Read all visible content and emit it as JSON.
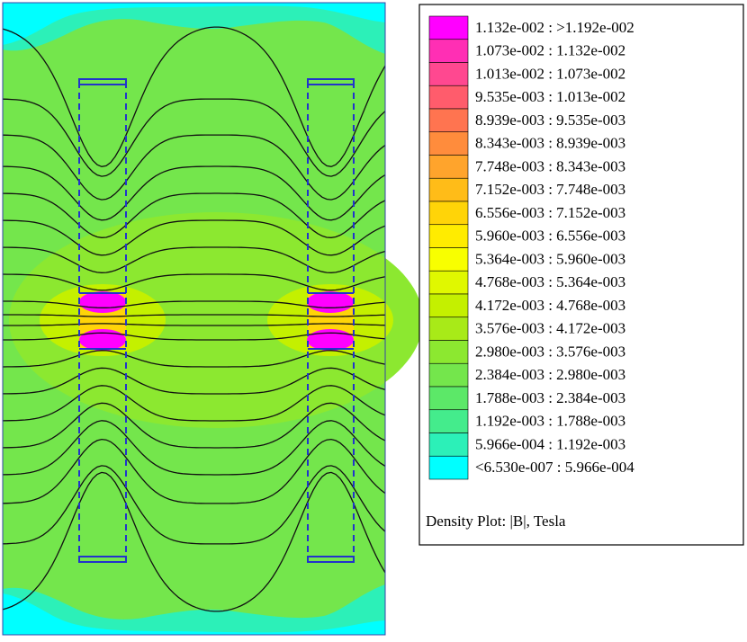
{
  "legend": {
    "items": [
      {
        "label": "1.132e-002 : >1.192e-002",
        "color": "#ff00ff"
      },
      {
        "label": "1.073e-002 : 1.132e-002",
        "color": "#ff2fb4"
      },
      {
        "label": "1.013e-002 : 1.073e-002",
        "color": "#ff4890"
      },
      {
        "label": "9.535e-003 : 1.013e-002",
        "color": "#ff5c6c"
      },
      {
        "label": "8.939e-003 : 9.535e-003",
        "color": "#ff7450"
      },
      {
        "label": "8.343e-003 : 8.939e-003",
        "color": "#ff8c3c"
      },
      {
        "label": "7.748e-003 : 8.343e-003",
        "color": "#ffa42c"
      },
      {
        "label": "7.152e-003 : 7.748e-003",
        "color": "#ffbc18"
      },
      {
        "label": "6.556e-003 : 7.152e-003",
        "color": "#ffd408"
      },
      {
        "label": "5.960e-003 : 6.556e-003",
        "color": "#ffec00"
      },
      {
        "label": "5.364e-003 : 5.960e-003",
        "color": "#f8ff00"
      },
      {
        "label": "4.768e-003 : 5.364e-003",
        "color": "#e0f800"
      },
      {
        "label": "4.172e-003 : 4.768e-003",
        "color": "#c4f000"
      },
      {
        "label": "3.576e-003 : 4.172e-003",
        "color": "#a8ea18"
      },
      {
        "label": "2.980e-003 : 3.576e-003",
        "color": "#8ce830"
      },
      {
        "label": "2.384e-003 : 2.980e-003",
        "color": "#74e64c"
      },
      {
        "label": "1.788e-003 : 2.384e-003",
        "color": "#5ce868"
      },
      {
        "label": "1.192e-003 : 1.788e-003",
        "color": "#44ec8c"
      },
      {
        "label": "5.966e-004 : 1.192e-003",
        "color": "#2cf0b8"
      },
      {
        "label": "<6.530e-007 : 5.966e-004",
        "color": "#00ffff"
      }
    ],
    "caption": "Density Plot: |B|, Tesla"
  }
}
